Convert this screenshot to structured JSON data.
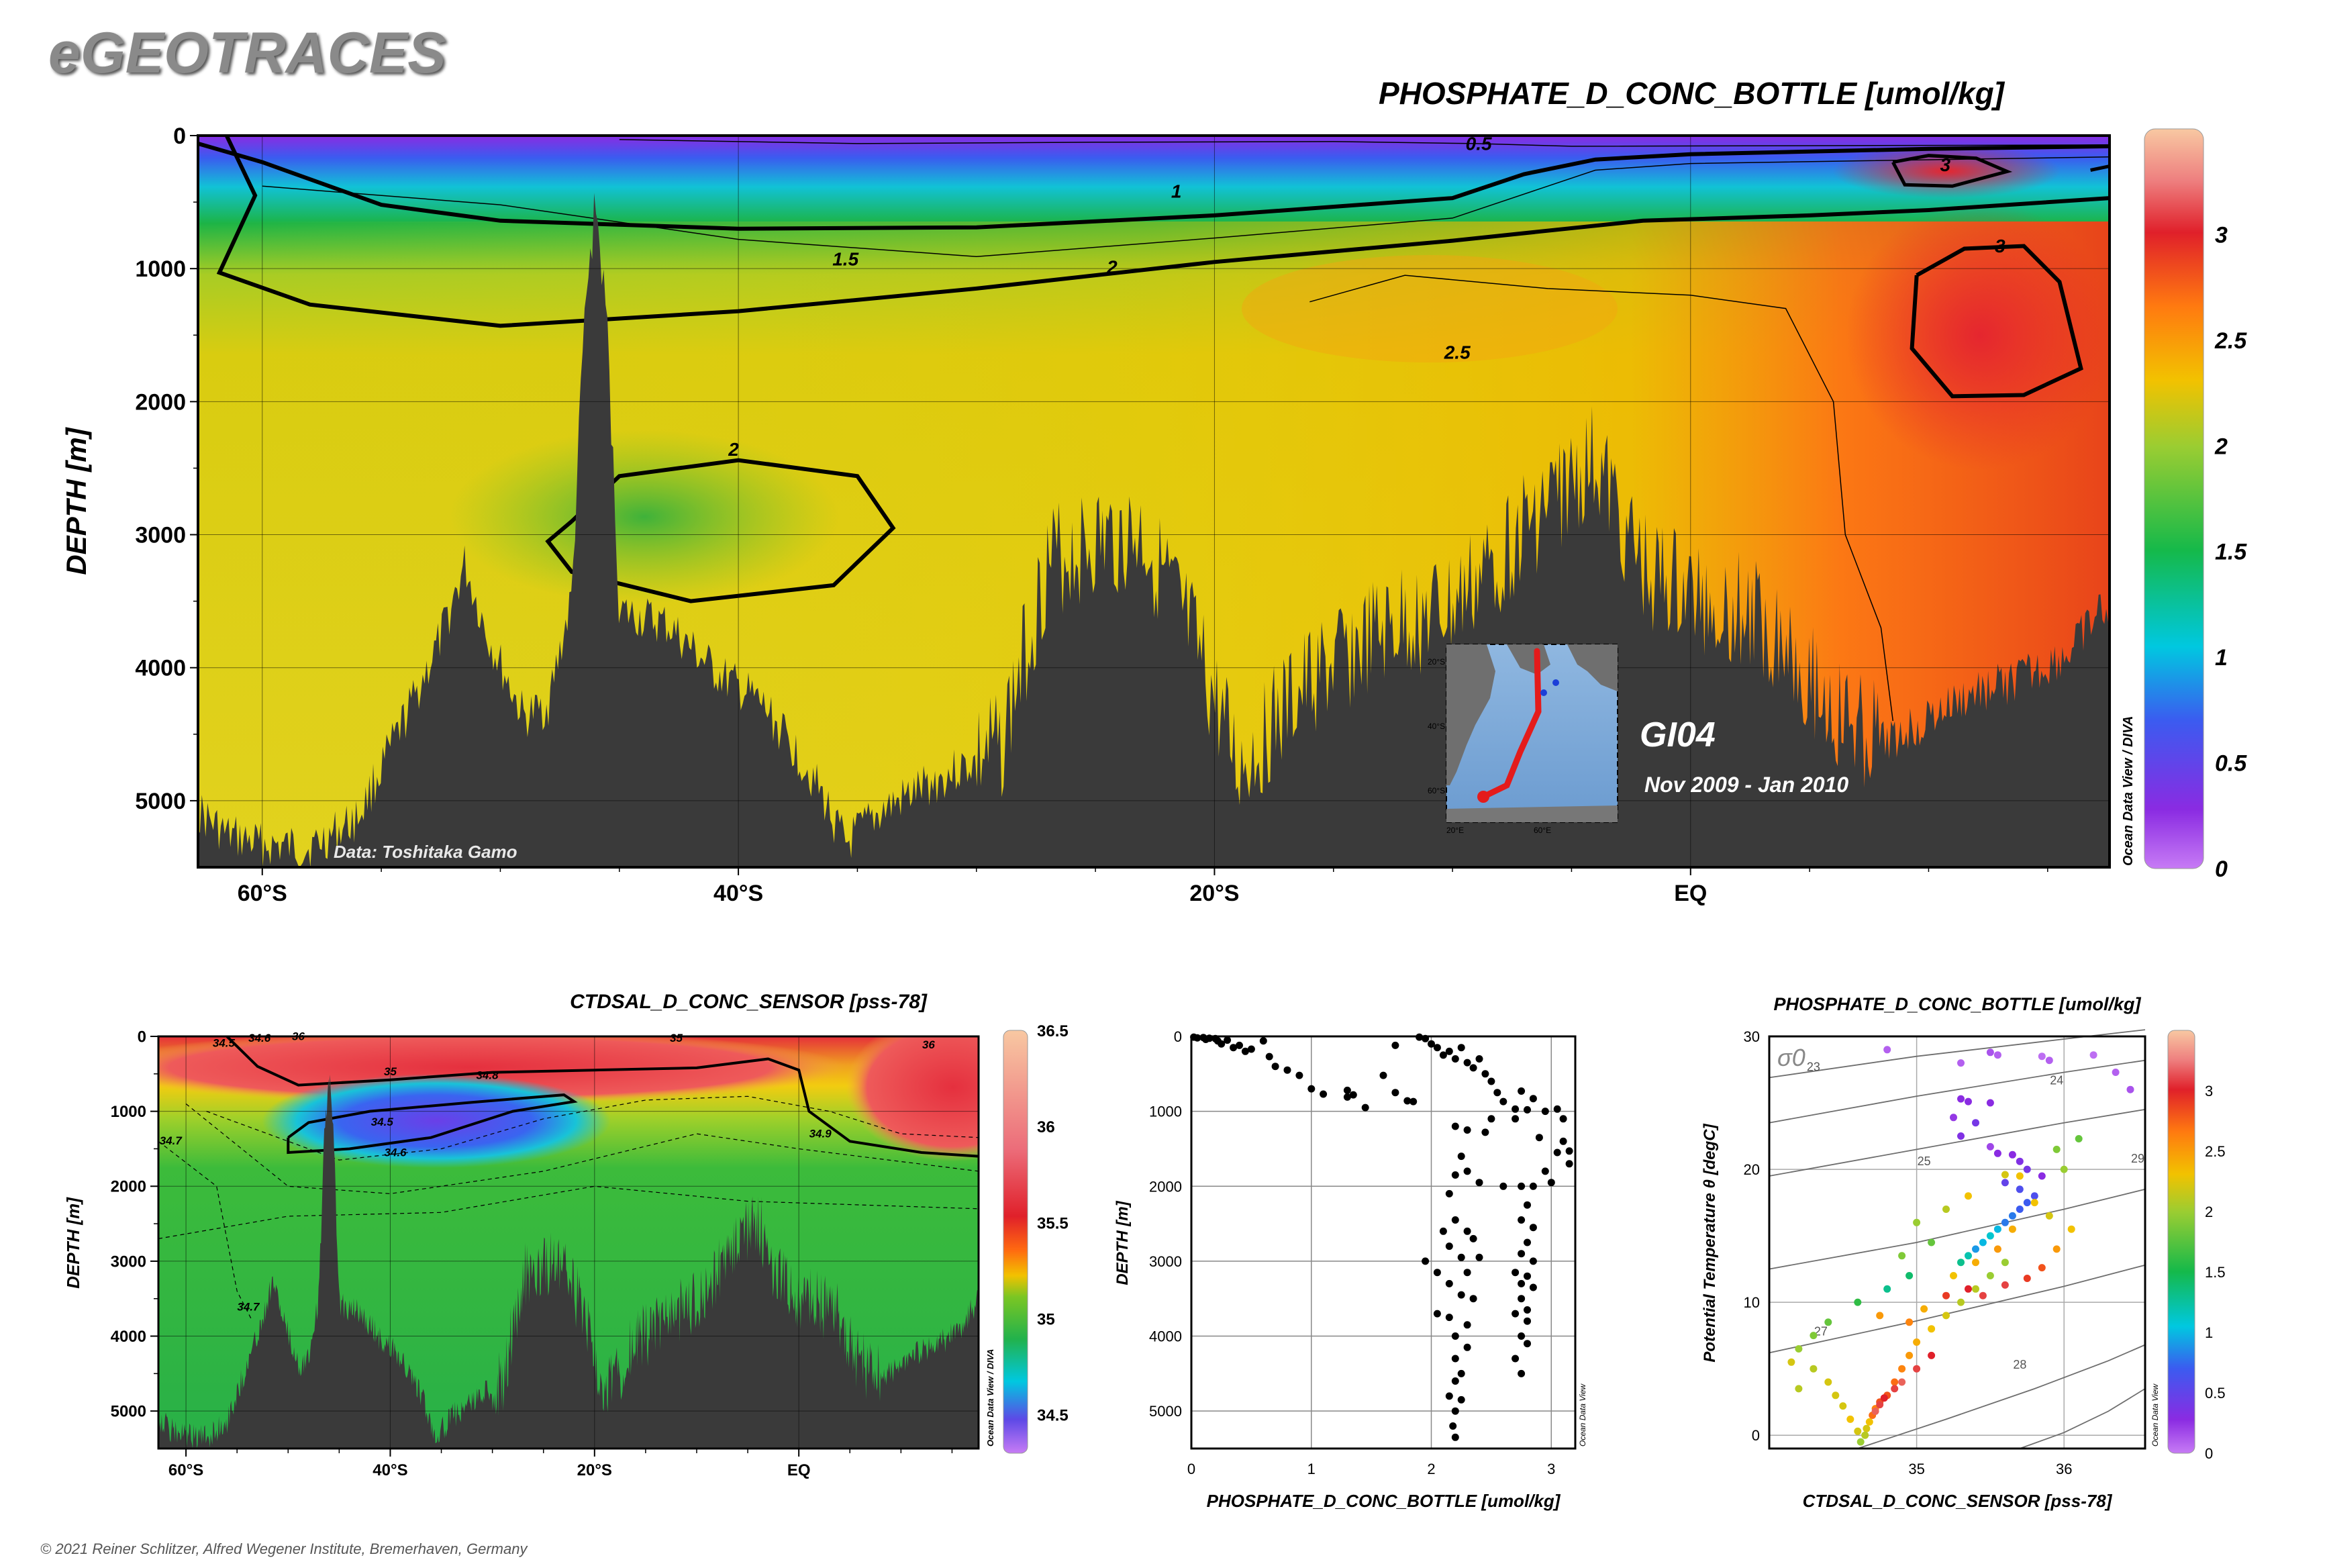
{
  "header": {
    "brand": "eGEOTRACES",
    "copyright": "© 2021 Reiner Schlitzer, Alfred Wegener Institute, Bremerhaven, Germany"
  },
  "main_section": {
    "title": "PHOSPHATE_D_CONC_BOTTLE [umol/kg]",
    "ylabel": "DEPTH [m]",
    "data_credit": "Data: Toshitaka Gamo",
    "cruise": "GI04",
    "dates": "Nov 2009 - Jan 2010",
    "odv_label": "Ocean Data View / DIVA",
    "map_labels": [
      "20°S",
      "40°S",
      "60°S",
      "20°E",
      "60°E"
    ]
  },
  "salinity_section": {
    "title": "CTDSAL_D_CONC_SENSOR [pss-78]",
    "ylabel": "DEPTH [m]",
    "odv_label": "Ocean Data View / DIVA"
  },
  "profile_plot": {
    "xlabel": "PHOSPHATE_D_CONC_BOTTLE [umol/kg]",
    "ylabel": "DEPTH [m]",
    "odv_label": "Ocean Data View"
  },
  "ts_plot": {
    "title": "PHOSPHATE_D_CONC_BOTTLE [umol/kg]",
    "xlabel": "CTDSAL_D_CONC_SENSOR [pss-78]",
    "ylabel": "Potential Temperature θ [degC]",
    "sigma_label": "σ0",
    "odv_label": "Ocean Data View"
  },
  "colors": {
    "seafloor": "#3a3a3a",
    "contour": "#000000"
  },
  "chart_data": [
    {
      "id": "phosphate_section",
      "type": "heatmap",
      "title": "PHOSPHATE_D_CONC_BOTTLE [umol/kg]",
      "xlabel": "",
      "ylabel": "DEPTH [m]",
      "xlim": [
        -62.7,
        17.6
      ],
      "ylim": [
        5500,
        0
      ],
      "xticks": [
        {
          "v": -60,
          "label": "60°S"
        },
        {
          "v": -40,
          "label": "40°S"
        },
        {
          "v": -20,
          "label": "20°S"
        },
        {
          "v": 0,
          "label": "EQ"
        }
      ],
      "yticks": [
        0,
        1000,
        2000,
        3000,
        4000,
        5000
      ],
      "colorbar": {
        "ticks": [
          "0",
          "0.5",
          "1",
          "1.5",
          "2",
          "2.5",
          "3"
        ],
        "min": 0,
        "max": 3.5
      },
      "contour_labels": [
        {
          "text": "0.5",
          "x": -8.9,
          "y": 70
        },
        {
          "text": "1",
          "x": -21.6,
          "y": 430
        },
        {
          "text": "1.5",
          "x": -35.5,
          "y": 940
        },
        {
          "text": "2",
          "x": -24.3,
          "y": 1000
        },
        {
          "text": "2.5",
          "x": -9.8,
          "y": 1640
        },
        {
          "text": "3",
          "x": 10.7,
          "y": 230
        },
        {
          "text": "3",
          "x": 13.0,
          "y": 840
        },
        {
          "text": "2",
          "x": -40.2,
          "y": 2370
        }
      ]
    },
    {
      "id": "salinity_section",
      "type": "heatmap",
      "title": "CTDSAL_D_CONC_SENSOR [pss-78]",
      "xlabel": "",
      "ylabel": "DEPTH [m]",
      "xlim": [
        -62.7,
        17.6
      ],
      "ylim": [
        5500,
        0
      ],
      "xticks": [
        {
          "v": -60,
          "label": "60°S"
        },
        {
          "v": -40,
          "label": "40°S"
        },
        {
          "v": -20,
          "label": "20°S"
        },
        {
          "v": 0,
          "label": "EQ"
        }
      ],
      "yticks": [
        0,
        1000,
        2000,
        3000,
        4000,
        5000
      ],
      "colorbar": {
        "ticks": [
          "34.5",
          "35",
          "35.5",
          "36",
          "36.5"
        ],
        "min": 34.3,
        "max": 36.5
      },
      "contour_labels": [
        {
          "text": "34.5",
          "x": -56.3,
          "y": 100
        },
        {
          "text": "34.6",
          "x": -52.8,
          "y": 30
        },
        {
          "text": "34.5",
          "x": -40.8,
          "y": 1150
        },
        {
          "text": "34.6",
          "x": -39.5,
          "y": 1560
        },
        {
          "text": "35",
          "x": -40.0,
          "y": 480
        },
        {
          "text": "34.8",
          "x": -30.5,
          "y": 530
        },
        {
          "text": "34.9",
          "x": 2.1,
          "y": 1310
        },
        {
          "text": "36",
          "x": 12.7,
          "y": 120
        },
        {
          "text": "35",
          "x": -12.0,
          "y": 30
        },
        {
          "text": "36",
          "x": -49.0,
          "y": 10
        },
        {
          "text": "34.7",
          "x": -61.5,
          "y": 1400
        },
        {
          "text": "34.7",
          "x": -53.9,
          "y": 3620
        }
      ]
    },
    {
      "id": "phosphate_profile",
      "type": "scatter",
      "xlabel": "PHOSPHATE_D_CONC_BOTTLE [umol/kg]",
      "ylabel": "DEPTH [m]",
      "xlim": [
        0,
        3.2
      ],
      "ylim": [
        5500,
        0
      ],
      "xticks": [
        0,
        1,
        2,
        3
      ],
      "yticks": [
        0,
        1000,
        2000,
        3000,
        4000,
        5000
      ],
      "points": [
        [
          0.02,
          10
        ],
        [
          0.05,
          20
        ],
        [
          0.1,
          15
        ],
        [
          0.12,
          40
        ],
        [
          0.15,
          25
        ],
        [
          0.2,
          30
        ],
        [
          0.22,
          60
        ],
        [
          0.25,
          100
        ],
        [
          0.3,
          50
        ],
        [
          0.35,
          150
        ],
        [
          0.4,
          120
        ],
        [
          0.45,
          200
        ],
        [
          0.5,
          170
        ],
        [
          0.6,
          60
        ],
        [
          0.65,
          270
        ],
        [
          0.7,
          400
        ],
        [
          0.8,
          450
        ],
        [
          0.9,
          520
        ],
        [
          1.0,
          700
        ],
        [
          1.1,
          770
        ],
        [
          1.3,
          810
        ],
        [
          1.35,
          780
        ],
        [
          1.3,
          720
        ],
        [
          1.45,
          950
        ],
        [
          1.7,
          120
        ],
        [
          1.6,
          520
        ],
        [
          1.7,
          750
        ],
        [
          1.8,
          860
        ],
        [
          1.85,
          870
        ],
        [
          1.9,
          10
        ],
        [
          1.95,
          30
        ],
        [
          2.0,
          100
        ],
        [
          2.05,
          150
        ],
        [
          2.1,
          250
        ],
        [
          2.15,
          200
        ],
        [
          2.2,
          300
        ],
        [
          2.25,
          150
        ],
        [
          2.3,
          350
        ],
        [
          2.35,
          420
        ],
        [
          2.4,
          300
        ],
        [
          2.45,
          500
        ],
        [
          2.5,
          600
        ],
        [
          2.55,
          750
        ],
        [
          2.6,
          870
        ],
        [
          2.7,
          970
        ],
        [
          2.75,
          730
        ],
        [
          2.8,
          980
        ],
        [
          2.5,
          1100
        ],
        [
          2.2,
          1200
        ],
        [
          2.3,
          1250
        ],
        [
          2.45,
          1280
        ],
        [
          2.7,
          1100
        ],
        [
          2.85,
          830
        ],
        [
          2.9,
          1350
        ],
        [
          2.95,
          1000
        ],
        [
          3.05,
          970
        ],
        [
          3.1,
          1100
        ],
        [
          3.1,
          1400
        ],
        [
          3.15,
          1530
        ],
        [
          3.15,
          1700
        ],
        [
          3.05,
          1550
        ],
        [
          2.95,
          1800
        ],
        [
          3.0,
          1950
        ],
        [
          2.85,
          2000
        ],
        [
          2.75,
          2000
        ],
        [
          2.6,
          2000
        ],
        [
          2.4,
          1950
        ],
        [
          2.3,
          1800
        ],
        [
          2.25,
          1600
        ],
        [
          2.2,
          1850
        ],
        [
          2.15,
          2100
        ],
        [
          2.2,
          2450
        ],
        [
          2.1,
          2600
        ],
        [
          2.3,
          2600
        ],
        [
          2.35,
          2700
        ],
        [
          2.15,
          2800
        ],
        [
          2.25,
          2950
        ],
        [
          2.4,
          2950
        ],
        [
          1.95,
          3000
        ],
        [
          2.05,
          3150
        ],
        [
          2.3,
          3150
        ],
        [
          2.15,
          3300
        ],
        [
          2.25,
          3450
        ],
        [
          2.35,
          3500
        ],
        [
          2.05,
          3700
        ],
        [
          2.15,
          3750
        ],
        [
          2.3,
          3850
        ],
        [
          2.2,
          4000
        ],
        [
          2.3,
          4150
        ],
        [
          2.2,
          4300
        ],
        [
          2.25,
          4500
        ],
        [
          2.2,
          4600
        ],
        [
          2.15,
          4800
        ],
        [
          2.25,
          4850
        ],
        [
          2.2,
          5000
        ],
        [
          2.18,
          5200
        ],
        [
          2.2,
          5350
        ],
        [
          2.8,
          2250
        ],
        [
          2.75,
          2450
        ],
        [
          2.85,
          2550
        ],
        [
          2.8,
          2750
        ],
        [
          2.75,
          2900
        ],
        [
          2.85,
          3000
        ],
        [
          2.7,
          3150
        ],
        [
          2.8,
          3200
        ],
        [
          2.75,
          3300
        ],
        [
          2.85,
          3350
        ],
        [
          2.75,
          3500
        ],
        [
          2.8,
          3650
        ],
        [
          2.7,
          3700
        ],
        [
          2.8,
          3800
        ],
        [
          2.75,
          4000
        ],
        [
          2.8,
          4100
        ],
        [
          2.7,
          4300
        ],
        [
          2.75,
          4500
        ]
      ]
    },
    {
      "id": "ts_diagram",
      "type": "scatter",
      "title": "PHOSPHATE_D_CONC_BOTTLE [umol/kg]",
      "xlabel": "CTDSAL_D_CONC_SENSOR [pss-78]",
      "ylabel": "Potential Temperature θ [degC]",
      "xlim": [
        34.0,
        36.55
      ],
      "ylim": [
        -1,
        30
      ],
      "xticks": [
        35,
        36
      ],
      "yticks": [
        0,
        10,
        20,
        30
      ],
      "colorbar": {
        "ticks": [
          "0",
          "0.5",
          "1",
          "1.5",
          "2",
          "2.5",
          "3"
        ],
        "min": 0,
        "max": 3.5
      },
      "isopycnal_labels": [
        "23",
        "24",
        "25",
        "27",
        "28",
        "29"
      ],
      "points": [
        [
          34.8,
          29,
          0.1
        ],
        [
          35.3,
          28,
          0.1
        ],
        [
          35.5,
          28.8,
          0.15
        ],
        [
          35.55,
          28.6,
          0.1
        ],
        [
          35.85,
          28.5,
          0.05
        ],
        [
          35.9,
          28.2,
          0.1
        ],
        [
          36.2,
          28.6,
          0.05
        ],
        [
          36.35,
          27.3,
          0.1
        ],
        [
          36.45,
          26,
          0.15
        ],
        [
          35.3,
          25.3,
          0.3
        ],
        [
          35.35,
          25.1,
          0.3
        ],
        [
          35.5,
          25,
          0.3
        ],
        [
          35.25,
          23.9,
          0.25
        ],
        [
          35.4,
          23.5,
          0.4
        ],
        [
          35.3,
          22.5,
          0.35
        ],
        [
          35.5,
          21.7,
          0.2
        ],
        [
          35.55,
          21.2,
          0.3
        ],
        [
          35.65,
          21.1,
          0.3
        ],
        [
          35.7,
          20.6,
          0.35
        ],
        [
          35.75,
          20,
          0.4
        ],
        [
          35.85,
          19.5,
          0.3
        ],
        [
          35.6,
          19,
          0.5
        ],
        [
          35.7,
          18.5,
          0.6
        ],
        [
          35.8,
          18,
          0.6
        ],
        [
          35.75,
          17.5,
          0.7
        ],
        [
          35.7,
          17,
          0.7
        ],
        [
          35.65,
          16.5,
          0.8
        ],
        [
          35.6,
          16,
          0.8
        ],
        [
          35.55,
          15.5,
          1.0
        ],
        [
          35.5,
          15,
          1.1
        ],
        [
          35.45,
          14.5,
          1.0
        ],
        [
          35.4,
          14,
          0.9
        ],
        [
          35.35,
          13.5,
          1.2
        ],
        [
          35.3,
          13,
          1.3
        ],
        [
          34.95,
          12,
          1.4
        ],
        [
          34.8,
          11,
          1.3
        ],
        [
          34.6,
          10,
          1.6
        ],
        [
          34.4,
          8.5,
          1.8
        ],
        [
          34.3,
          7.5,
          1.9
        ],
        [
          34.2,
          6.5,
          2.0
        ],
        [
          34.15,
          5.5,
          2.2
        ],
        [
          35.4,
          11,
          2.1
        ],
        [
          35.5,
          12,
          2.0
        ],
        [
          35.6,
          13,
          2.0
        ],
        [
          35.3,
          10,
          2.1
        ],
        [
          35.2,
          9,
          2.2
        ],
        [
          35.1,
          8,
          2.3
        ],
        [
          35.0,
          7,
          2.4
        ],
        [
          34.95,
          6,
          2.5
        ],
        [
          34.9,
          5,
          2.6
        ],
        [
          34.85,
          4,
          2.7
        ],
        [
          34.8,
          3,
          2.8
        ],
        [
          34.75,
          2.5,
          2.8
        ],
        [
          34.72,
          2,
          2.6
        ],
        [
          34.7,
          1.5,
          2.7
        ],
        [
          34.68,
          1,
          2.3
        ],
        [
          34.66,
          0.5,
          2.2
        ],
        [
          34.65,
          0,
          2.1
        ],
        [
          34.62,
          -0.5,
          2.0
        ],
        [
          34.6,
          0.3,
          2.2
        ],
        [
          34.55,
          1.2,
          2.3
        ],
        [
          34.5,
          2.2,
          2.2
        ],
        [
          34.45,
          3,
          2.2
        ],
        [
          34.4,
          4,
          2.2
        ],
        [
          34.3,
          5,
          2.1
        ],
        [
          34.2,
          3.5,
          2.1
        ],
        [
          35.2,
          10.5,
          2.9
        ],
        [
          35.35,
          11,
          3.0
        ],
        [
          35.45,
          10.5,
          3.1
        ],
        [
          35.6,
          11.3,
          3.1
        ],
        [
          35.75,
          11.8,
          2.9
        ],
        [
          35.85,
          12.6,
          2.8
        ],
        [
          35.95,
          14,
          2.5
        ],
        [
          36.05,
          15.5,
          2.3
        ],
        [
          35.9,
          16.5,
          2.2
        ],
        [
          35.8,
          17.5,
          2.3
        ],
        [
          35.1,
          6,
          3.0
        ],
        [
          35.0,
          5,
          3.1
        ],
        [
          34.9,
          4,
          3.2
        ],
        [
          34.85,
          3.5,
          3.1
        ],
        [
          34.78,
          2.8,
          3.0
        ],
        [
          34.75,
          2.3,
          3.1
        ],
        [
          34.72,
          1.8,
          3.2
        ],
        [
          34.95,
          8.5,
          2.6
        ],
        [
          35.05,
          9.5,
          2.4
        ],
        [
          35.25,
          12,
          2.3
        ],
        [
          35.4,
          13,
          2.4
        ],
        [
          35.55,
          14,
          2.5
        ],
        [
          35.65,
          15.5,
          2.4
        ],
        [
          35.7,
          19.5,
          2.3
        ],
        [
          35.6,
          19.6,
          2.2
        ],
        [
          35.95,
          21.5,
          1.9
        ],
        [
          36.1,
          22.3,
          1.8
        ],
        [
          36.0,
          20,
          2.0
        ],
        [
          35.1,
          14.5,
          1.8
        ],
        [
          34.9,
          13.5,
          1.9
        ],
        [
          35.0,
          16,
          2.0
        ],
        [
          35.2,
          17,
          2.1
        ],
        [
          35.35,
          18,
          2.3
        ],
        [
          34.75,
          9,
          2.5
        ]
      ]
    }
  ]
}
